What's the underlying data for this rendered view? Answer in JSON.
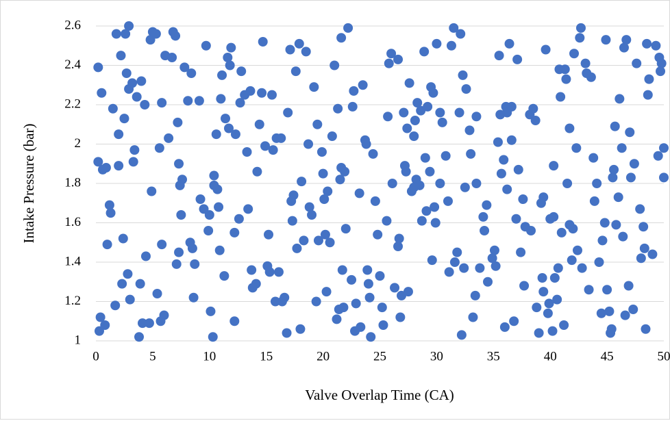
{
  "chart_data": {
    "type": "scatter",
    "x_label": "Valve Overlap Time (CA)",
    "y_label": "Intake Pressure (bar)",
    "color": "#4472c4",
    "grid": true,
    "xlim": [
      0,
      50
    ],
    "xticks": [
      0,
      5,
      10,
      15,
      20,
      25,
      30,
      35,
      40,
      45,
      50
    ],
    "ylim": [
      1,
      2.6
    ],
    "yticks": [
      1,
      1.2,
      1.4,
      1.6,
      1.8,
      2,
      2.2,
      2.4,
      2.6
    ],
    "x": [
      0.2,
      0.2,
      0.3,
      0.4,
      0.5,
      0.6,
      0.8,
      0.9,
      1.0,
      1.2,
      1.3,
      1.5,
      1.7,
      1.8,
      2.0,
      2.0,
      2.2,
      2.3,
      2.4,
      2.5,
      2.6,
      2.7,
      2.8,
      2.9,
      2.9,
      3.0,
      3.2,
      3.3,
      3.4,
      3.6,
      3.8,
      3.9,
      4.0,
      4.1,
      4.3,
      4.4,
      4.7,
      4.8,
      4.9,
      5.0,
      5.3,
      5.4,
      5.6,
      5.7,
      5.8,
      5.8,
      6.0,
      6.1,
      6.4,
      6.7,
      6.8,
      7.0,
      7.1,
      7.2,
      7.3,
      7.3,
      7.4,
      7.5,
      7.6,
      7.8,
      8.1,
      8.3,
      8.4,
      8.5,
      8.6,
      8.7,
      9.1,
      9.2,
      9.5,
      9.7,
      9.9,
      10.0,
      10.1,
      10.3,
      10.4,
      10.4,
      10.6,
      10.7,
      10.8,
      10.9,
      11.0,
      11.1,
      11.3,
      11.4,
      11.6,
      11.7,
      11.8,
      11.9,
      12.2,
      12.2,
      12.3,
      12.6,
      12.7,
      12.8,
      13.1,
      13.3,
      13.4,
      13.6,
      13.7,
      13.8,
      14.1,
      14.2,
      14.4,
      14.6,
      14.7,
      14.9,
      15.1,
      15.2,
      15.3,
      15.5,
      15.6,
      15.8,
      15.9,
      16.1,
      16.3,
      16.4,
      16.6,
      16.8,
      16.9,
      17.1,
      17.2,
      17.3,
      17.4,
      17.6,
      17.7,
      17.9,
      18.0,
      18.1,
      18.3,
      18.5,
      18.7,
      18.8,
      19.0,
      19.2,
      19.4,
      19.5,
      19.6,
      19.9,
      20.0,
      20.1,
      20.2,
      20.3,
      20.4,
      20.6,
      20.8,
      21.0,
      21.2,
      21.3,
      21.4,
      21.5,
      21.6,
      21.6,
      21.7,
      21.8,
      21.9,
      22.0,
      22.2,
      22.5,
      22.6,
      22.7,
      22.8,
      22.9,
      23.2,
      23.3,
      23.5,
      23.7,
      23.8,
      23.9,
      24.0,
      24.1,
      24.2,
      24.4,
      24.6,
      24.8,
      25.0,
      25.2,
      25.3,
      25.6,
      25.7,
      25.8,
      26.0,
      26.1,
      26.3,
      26.6,
      26.6,
      26.7,
      26.8,
      26.9,
      27.1,
      27.2,
      27.3,
      27.4,
      27.5,
      27.6,
      27.8,
      28.0,
      28.0,
      28.1,
      28.2,
      28.3,
      28.5,
      28.6,
      28.7,
      28.9,
      29.0,
      29.1,
      29.2,
      29.4,
      29.5,
      29.6,
      29.7,
      29.8,
      29.9,
      30.0,
      30.3,
      30.3,
      30.5,
      30.8,
      31.0,
      31.1,
      31.3,
      31.5,
      31.6,
      31.8,
      32.0,
      32.1,
      32.2,
      32.3,
      32.4,
      32.5,
      32.6,
      32.9,
      33.0,
      33.2,
      33.4,
      33.5,
      33.5,
      33.8,
      34.1,
      34.2,
      34.4,
      34.5,
      34.9,
      35.1,
      35.2,
      35.4,
      35.5,
      35.6,
      35.7,
      35.9,
      36.0,
      36.1,
      36.2,
      36.2,
      36.4,
      36.6,
      36.6,
      36.8,
      37.0,
      37.1,
      37.2,
      37.4,
      37.6,
      37.7,
      37.8,
      38.2,
      38.3,
      38.5,
      38.7,
      38.8,
      39.0,
      39.2,
      39.3,
      39.4,
      39.4,
      39.6,
      39.8,
      39.9,
      40.0,
      40.2,
      40.3,
      40.3,
      40.4,
      40.6,
      40.7,
      40.8,
      40.9,
      41.0,
      41.2,
      41.3,
      41.4,
      41.5,
      41.7,
      41.7,
      41.9,
      42.0,
      42.1,
      42.3,
      42.4,
      42.6,
      42.7,
      42.8,
      43.1,
      43.2,
      43.4,
      43.6,
      43.8,
      43.9,
      44.1,
      44.3,
      44.5,
      44.6,
      44.8,
      44.9,
      45.0,
      45.2,
      45.3,
      45.4,
      45.5,
      45.6,
      45.7,
      45.8,
      46.0,
      46.1,
      46.3,
      46.4,
      46.5,
      46.6,
      46.7,
      46.9,
      47.0,
      47.1,
      47.3,
      47.4,
      47.6,
      47.9,
      48.0,
      48.2,
      48.3,
      48.4,
      48.5,
      48.6,
      48.7,
      49.0,
      49.3,
      49.5,
      49.6,
      49.7,
      49.8,
      50.0,
      50.0
    ],
    "values": [
      1.91,
      2.39,
      1.05,
      1.12,
      2.26,
      1.87,
      1.08,
      1.88,
      1.49,
      1.69,
      1.65,
      2.18,
      1.18,
      2.56,
      1.89,
      2.05,
      2.45,
      1.29,
      1.52,
      2.13,
      2.56,
      2.36,
      1.34,
      2.6,
      2.28,
      1.21,
      2.31,
      1.91,
      1.97,
      2.24,
      1.02,
      1.29,
      2.32,
      1.09,
      2.2,
      1.43,
      1.09,
      2.53,
      1.76,
      2.57,
      2.56,
      1.24,
      1.98,
      1.1,
      2.21,
      1.49,
      1.13,
      2.45,
      2.03,
      2.44,
      2.57,
      2.55,
      1.39,
      2.11,
      1.9,
      1.45,
      1.79,
      1.64,
      1.82,
      2.39,
      2.22,
      1.5,
      2.36,
      1.47,
      1.22,
      1.39,
      2.22,
      1.72,
      1.67,
      2.5,
      1.56,
      1.64,
      1.15,
      1.02,
      1.84,
      1.79,
      2.05,
      1.77,
      1.68,
      1.46,
      2.23,
      2.35,
      1.33,
      2.13,
      2.44,
      2.08,
      2.4,
      2.49,
      1.55,
      1.1,
      2.05,
      1.62,
      2.21,
      2.37,
      2.25,
      1.96,
      1.67,
      2.27,
      1.36,
      1.27,
      1.29,
      1.86,
      2.1,
      2.26,
      2.52,
      1.99,
      1.38,
      1.54,
      1.35,
      2.25,
      1.97,
      1.2,
      2.03,
      1.35,
      2.03,
      1.2,
      1.22,
      1.04,
      2.16,
      2.48,
      1.71,
      1.61,
      1.74,
      2.37,
      1.47,
      2.51,
      1.06,
      1.81,
      1.51,
      2.47,
      2.0,
      1.68,
      1.64,
      2.29,
      1.2,
      2.1,
      1.51,
      1.96,
      1.85,
      1.72,
      1.54,
      1.25,
      1.76,
      1.5,
      2.04,
      2.4,
      1.11,
      2.18,
      1.16,
      1.82,
      1.88,
      2.54,
      1.36,
      1.17,
      1.86,
      1.57,
      2.59,
      1.31,
      2.19,
      2.27,
      1.05,
      1.19,
      1.75,
      1.07,
      2.3,
      2.02,
      2.0,
      1.36,
      1.29,
      1.22,
      1.02,
      1.95,
      1.71,
      1.54,
      1.33,
      1.17,
      1.08,
      1.61,
      2.14,
      2.41,
      2.46,
      1.8,
      1.27,
      1.48,
      2.43,
      1.52,
      1.12,
      1.23,
      2.16,
      1.89,
      1.86,
      2.08,
      1.25,
      2.31,
      1.76,
      1.78,
      2.04,
      2.12,
      1.82,
      2.21,
      1.79,
      2.17,
      1.61,
      2.47,
      1.93,
      1.66,
      2.19,
      1.86,
      2.29,
      1.41,
      2.26,
      1.68,
      1.6,
      2.51,
      2.16,
      1.8,
      2.11,
      1.94,
      1.71,
      1.35,
      2.5,
      2.59,
      1.4,
      1.45,
      2.16,
      2.56,
      1.03,
      2.35,
      1.37,
      1.78,
      2.28,
      2.07,
      1.95,
      1.12,
      1.23,
      2.14,
      1.8,
      1.37,
      1.63,
      1.56,
      1.69,
      1.3,
      1.42,
      1.46,
      1.38,
      2.01,
      2.45,
      2.15,
      1.85,
      1.92,
      1.07,
      2.19,
      1.77,
      2.16,
      2.51,
      2.19,
      2.02,
      1.1,
      1.62,
      2.43,
      1.87,
      1.45,
      1.72,
      1.28,
      1.58,
      2.15,
      1.56,
      2.18,
      2.12,
      1.17,
      1.04,
      1.7,
      1.32,
      1.73,
      1.25,
      2.48,
      1.14,
      1.19,
      1.62,
      1.05,
      1.89,
      1.63,
      1.32,
      1.21,
      1.37,
      2.38,
      2.24,
      1.55,
      1.08,
      2.38,
      2.33,
      1.8,
      2.08,
      1.59,
      1.41,
      1.57,
      2.46,
      1.98,
      1.46,
      2.54,
      2.59,
      1.37,
      2.41,
      2.36,
      1.26,
      2.34,
      1.93,
      1.71,
      1.8,
      1.4,
      1.14,
      1.51,
      1.6,
      2.53,
      1.26,
      1.15,
      1.04,
      1.06,
      1.83,
      1.87,
      2.09,
      1.59,
      1.73,
      2.23,
      1.98,
      1.53,
      2.49,
      1.13,
      2.53,
      1.28,
      2.06,
      1.83,
      1.16,
      1.9,
      2.41,
      1.67,
      1.42,
      1.58,
      1.47,
      1.06,
      2.51,
      2.25,
      2.33,
      1.44,
      2.5,
      1.94,
      2.44,
      2.37,
      2.41,
      1.83,
      1.98
    ]
  }
}
